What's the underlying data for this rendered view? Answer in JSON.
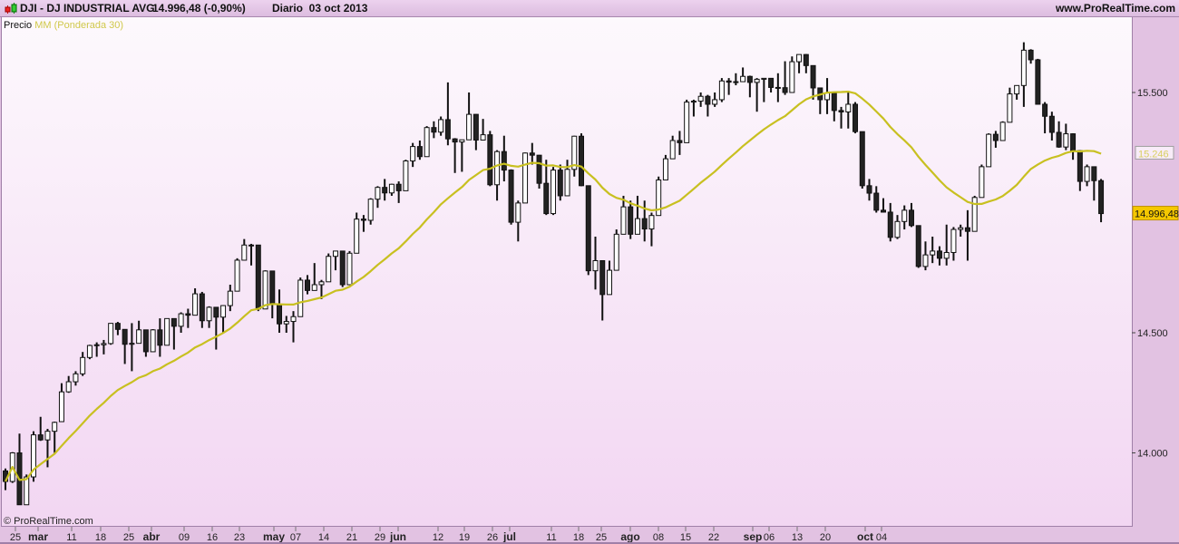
{
  "header": {
    "symbol": "DJI - DJ INDUSTRIAL AVG",
    "quote": "14.996,48 (-0,90%)",
    "period": "Diario  03 oct 2013",
    "site": "www.ProRealTime.com",
    "icon": "candlestick-icon"
  },
  "legend": {
    "price_label": "Precio",
    "ma_label": "MM (Ponderada 30)"
  },
  "copyright": "© ProRealTime.com",
  "colors": {
    "up_fill": "#ffffff",
    "down_fill": "#222222",
    "candle_stroke": "#111111",
    "ma_line": "#c8c020",
    "last_price_box": "#f5c800",
    "ma_box_text": "#d8d060"
  },
  "chart_data": {
    "type": "candlestick",
    "title": "DJI - DJ INDUSTRIAL AVG",
    "ylim": [
      13700,
      15850
    ],
    "grid": false,
    "y_ticks": [
      {
        "value": 15500,
        "label": "15.500"
      },
      {
        "value": 14500,
        "label": "14.500"
      },
      {
        "value": 14000,
        "label": "14.000"
      }
    ],
    "x_ticks": [
      {
        "label": "25",
        "bold": false
      },
      {
        "label": "mar",
        "bold": true
      },
      {
        "label": "11",
        "bold": false
      },
      {
        "label": "18",
        "bold": false
      },
      {
        "label": "25",
        "bold": false
      },
      {
        "label": "abr",
        "bold": true
      },
      {
        "label": "09",
        "bold": false
      },
      {
        "label": "16",
        "bold": false
      },
      {
        "label": "23",
        "bold": false
      },
      {
        "label": "may",
        "bold": true
      },
      {
        "label": "07",
        "bold": false
      },
      {
        "label": "14",
        "bold": false
      },
      {
        "label": "21",
        "bold": false
      },
      {
        "label": "29",
        "bold": false
      },
      {
        "label": "jun",
        "bold": true
      },
      {
        "label": "12",
        "bold": false
      },
      {
        "label": "19",
        "bold": false
      },
      {
        "label": "26",
        "bold": false
      },
      {
        "label": "jul",
        "bold": true
      },
      {
        "label": "11",
        "bold": false
      },
      {
        "label": "18",
        "bold": false
      },
      {
        "label": "25",
        "bold": false
      },
      {
        "label": "ago",
        "bold": true
      },
      {
        "label": "08",
        "bold": false
      },
      {
        "label": "15",
        "bold": false
      },
      {
        "label": "22",
        "bold": false
      },
      {
        "label": "sep",
        "bold": true
      },
      {
        "label": "06",
        "bold": false
      },
      {
        "label": "13",
        "bold": false
      },
      {
        "label": "20",
        "bold": false
      },
      {
        "label": "oct",
        "bold": true
      },
      {
        "label": "04",
        "bold": false
      }
    ],
    "ma_period": 30,
    "ma_type": "weighted",
    "last_price_label": "14.996,48",
    "ma_last_label": "15.246",
    "candles_ohlc": [
      [
        13925,
        13935,
        13845,
        13881
      ],
      [
        13881,
        14003,
        13875,
        14000
      ],
      [
        14000,
        14080,
        13784,
        13784
      ],
      [
        13784,
        13910,
        13784,
        13900
      ],
      [
        13900,
        14090,
        13880,
        14075
      ],
      [
        14075,
        14150,
        14050,
        14054
      ],
      [
        14054,
        14100,
        13940,
        14090
      ],
      [
        14090,
        14130,
        14000,
        14127
      ],
      [
        14130,
        14290,
        14130,
        14254
      ],
      [
        14254,
        14320,
        14250,
        14296
      ],
      [
        14296,
        14340,
        14280,
        14329
      ],
      [
        14329,
        14420,
        14320,
        14397
      ],
      [
        14397,
        14450,
        14390,
        14447
      ],
      [
        14447,
        14460,
        14400,
        14450
      ],
      [
        14450,
        14470,
        14410,
        14455
      ],
      [
        14455,
        14540,
        14450,
        14539
      ],
      [
        14539,
        14545,
        14490,
        14514
      ],
      [
        14514,
        14514,
        14370,
        14452
      ],
      [
        14452,
        14540,
        14340,
        14456
      ],
      [
        14456,
        14550,
        14456,
        14512
      ],
      [
        14512,
        14512,
        14400,
        14421
      ],
      [
        14421,
        14515,
        14420,
        14512
      ],
      [
        14512,
        14560,
        14400,
        14448
      ],
      [
        14448,
        14560,
        14448,
        14559
      ],
      [
        14559,
        14560,
        14430,
        14527
      ],
      [
        14527,
        14585,
        14500,
        14579
      ],
      [
        14579,
        14600,
        14520,
        14573
      ],
      [
        14573,
        14685,
        14573,
        14662
      ],
      [
        14662,
        14670,
        14520,
        14550
      ],
      [
        14550,
        14610,
        14520,
        14606
      ],
      [
        14606,
        14606,
        14430,
        14565
      ],
      [
        14565,
        14615,
        14500,
        14613
      ],
      [
        14613,
        14700,
        14590,
        14673
      ],
      [
        14673,
        14810,
        14673,
        14802
      ],
      [
        14802,
        14890,
        14800,
        14865
      ],
      [
        14865,
        14870,
        14780,
        14865
      ],
      [
        14865,
        14865,
        14590,
        14599
      ],
      [
        14599,
        14760,
        14599,
        14757
      ],
      [
        14757,
        14757,
        14560,
        14619
      ],
      [
        14619,
        14680,
        14500,
        14537
      ],
      [
        14537,
        14570,
        14500,
        14547
      ],
      [
        14547,
        14590,
        14460,
        14567
      ],
      [
        14567,
        14730,
        14567,
        14719
      ],
      [
        14719,
        14740,
        14660,
        14676
      ],
      [
        14676,
        14790,
        14676,
        14700
      ],
      [
        14700,
        14720,
        14640,
        14712
      ],
      [
        14712,
        14830,
        14712,
        14818
      ],
      [
        14818,
        14840,
        14760,
        14840
      ],
      [
        14840,
        14840,
        14690,
        14700
      ],
      [
        14700,
        14840,
        14700,
        14831
      ],
      [
        14831,
        15000,
        14831,
        14973
      ],
      [
        14973,
        14990,
        14920,
        14968
      ],
      [
        14968,
        15060,
        14950,
        15056
      ],
      [
        15056,
        15110,
        15020,
        15105
      ],
      [
        15105,
        15140,
        15050,
        15082
      ],
      [
        15082,
        15120,
        15070,
        15118
      ],
      [
        15118,
        15130,
        15040,
        15091
      ],
      [
        15091,
        15220,
        15091,
        15215
      ],
      [
        15215,
        15290,
        15190,
        15275
      ],
      [
        15275,
        15300,
        15220,
        15233
      ],
      [
        15233,
        15360,
        15233,
        15354
      ],
      [
        15354,
        15380,
        15310,
        15335
      ],
      [
        15335,
        15400,
        15320,
        15387
      ],
      [
        15387,
        15542,
        15280,
        15307
      ],
      [
        15307,
        15310,
        15165,
        15294
      ],
      [
        15294,
        15300,
        15170,
        15303
      ],
      [
        15303,
        15500,
        15303,
        15409
      ],
      [
        15409,
        15410,
        15260,
        15302
      ],
      [
        15302,
        15390,
        15300,
        15324
      ],
      [
        15324,
        15340,
        15110,
        15116
      ],
      [
        15116,
        15260,
        15050,
        15254
      ],
      [
        15254,
        15320,
        15130,
        15177
      ],
      [
        15177,
        15180,
        14950,
        14960
      ],
      [
        14960,
        15050,
        14880,
        15040
      ],
      [
        15040,
        15250,
        15040,
        15248
      ],
      [
        15248,
        15290,
        15200,
        15239
      ],
      [
        15239,
        15240,
        15100,
        15122
      ],
      [
        15122,
        15220,
        14990,
        14996
      ],
      [
        14996,
        15190,
        14990,
        15177
      ],
      [
        15177,
        15200,
        15050,
        15070
      ],
      [
        15070,
        15220,
        15070,
        15180
      ],
      [
        15180,
        15320,
        15150,
        15318
      ],
      [
        15318,
        15330,
        15110,
        15112
      ],
      [
        15112,
        15112,
        14740,
        14758
      ],
      [
        14758,
        14900,
        14680,
        14800
      ],
      [
        14800,
        14800,
        14551,
        14659
      ],
      [
        14659,
        14800,
        14659,
        14760
      ],
      [
        14760,
        14930,
        14760,
        14910
      ],
      [
        14910,
        15070,
        14910,
        15024
      ],
      [
        15024,
        15050,
        14890,
        14910
      ],
      [
        14910,
        15070,
        14910,
        14975
      ],
      [
        14975,
        15050,
        14880,
        14932
      ],
      [
        14932,
        15000,
        14860,
        14988
      ],
      [
        14988,
        15150,
        14988,
        15136
      ],
      [
        15136,
        15240,
        15136,
        15224
      ],
      [
        15224,
        15320,
        15224,
        15300
      ],
      [
        15300,
        15340,
        15240,
        15291
      ],
      [
        15291,
        15470,
        15291,
        15460
      ],
      [
        15460,
        15470,
        15400,
        15464
      ],
      [
        15464,
        15500,
        15440,
        15484
      ],
      [
        15484,
        15490,
        15400,
        15451
      ],
      [
        15451,
        15500,
        15440,
        15470
      ],
      [
        15470,
        15560,
        15460,
        15548
      ],
      [
        15548,
        15560,
        15490,
        15543
      ],
      [
        15543,
        15580,
        15530,
        15545
      ],
      [
        15545,
        15604,
        15545,
        15567
      ],
      [
        15567,
        15570,
        15480,
        15542
      ],
      [
        15542,
        15560,
        15420,
        15555
      ],
      [
        15555,
        15560,
        15460,
        15559
      ],
      [
        15559,
        15560,
        15500,
        15521
      ],
      [
        15521,
        15580,
        15460,
        15520
      ],
      [
        15520,
        15630,
        15490,
        15500
      ],
      [
        15500,
        15650,
        15500,
        15628
      ],
      [
        15628,
        15658,
        15580,
        15658
      ],
      [
        15658,
        15660,
        15580,
        15612
      ],
      [
        15612,
        15612,
        15470,
        15519
      ],
      [
        15519,
        15520,
        15410,
        15470
      ],
      [
        15470,
        15560,
        15410,
        15498
      ],
      [
        15498,
        15500,
        15380,
        15425
      ],
      [
        15425,
        15440,
        15350,
        15419
      ],
      [
        15419,
        15500,
        15350,
        15451
      ],
      [
        15451,
        15460,
        15330,
        15337
      ],
      [
        15337,
        15337,
        15100,
        15112
      ],
      [
        15112,
        15140,
        15050,
        15081
      ],
      [
        15081,
        15110,
        15000,
        15010
      ],
      [
        15010,
        15060,
        15000,
        15002
      ],
      [
        15002,
        15040,
        14880,
        14897
      ],
      [
        14897,
        14990,
        14890,
        14963
      ],
      [
        14963,
        15030,
        14930,
        15010
      ],
      [
        15010,
        15040,
        14940,
        14946
      ],
      [
        14946,
        14946,
        14770,
        14776
      ],
      [
        14776,
        14880,
        14760,
        14824
      ],
      [
        14824,
        14900,
        14790,
        14840
      ],
      [
        14840,
        14860,
        14780,
        14810
      ],
      [
        14810,
        14950,
        14780,
        14834
      ],
      [
        14834,
        14940,
        14800,
        14930
      ],
      [
        14930,
        14950,
        14900,
        14937
      ],
      [
        14937,
        15010,
        14800,
        14922
      ],
      [
        14922,
        15070,
        14922,
        15063
      ],
      [
        15063,
        15200,
        15063,
        15191
      ],
      [
        15191,
        15330,
        15191,
        15326
      ],
      [
        15326,
        15340,
        15270,
        15300
      ],
      [
        15300,
        15380,
        15300,
        15376
      ],
      [
        15376,
        15520,
        15376,
        15494
      ],
      [
        15494,
        15530,
        15470,
        15529
      ],
      [
        15529,
        15709,
        15440,
        15676
      ],
      [
        15676,
        15680,
        15620,
        15636
      ],
      [
        15636,
        15640,
        15450,
        15451
      ],
      [
        15451,
        15460,
        15330,
        15401
      ],
      [
        15401,
        15420,
        15300,
        15334
      ],
      [
        15334,
        15380,
        15270,
        15273
      ],
      [
        15273,
        15370,
        15260,
        15328
      ],
      [
        15328,
        15330,
        15220,
        15258
      ],
      [
        15258,
        15260,
        15090,
        15130
      ],
      [
        15130,
        15200,
        15110,
        15191
      ],
      [
        15191,
        15191,
        15050,
        15133
      ],
      [
        15133,
        15140,
        14960,
        14996
      ]
    ]
  }
}
